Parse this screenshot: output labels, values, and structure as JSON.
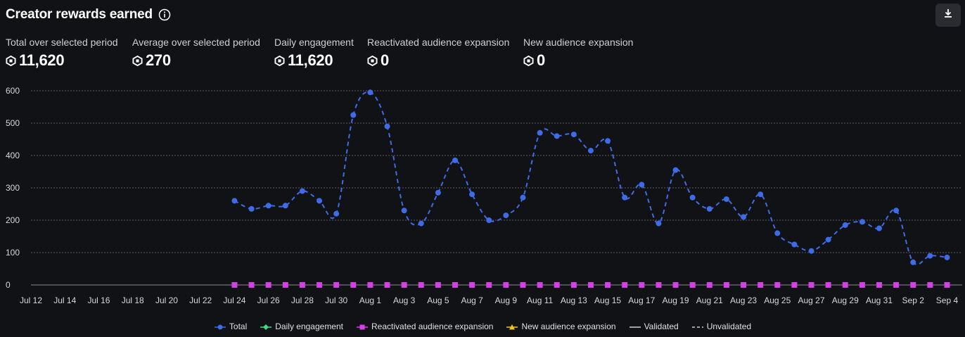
{
  "header": {
    "title": "Creator rewards earned",
    "info_icon": "info-circle-icon",
    "download_icon": "download-icon"
  },
  "stats": [
    {
      "label": "Total over selected period",
      "value": "11,620",
      "icon": "robux-icon"
    },
    {
      "label": "Average over selected period",
      "value": "270",
      "icon": "robux-icon"
    },
    {
      "label": "Daily engagement",
      "value": "11,620",
      "icon": "robux-icon"
    },
    {
      "label": "Reactivated audience expansion",
      "value": "0",
      "icon": "robux-icon"
    },
    {
      "label": "New audience expansion",
      "value": "0",
      "icon": "robux-icon"
    }
  ],
  "legend": [
    {
      "label": "Total",
      "color": "#3e6be8",
      "marker": "circle"
    },
    {
      "label": "Daily engagement",
      "color": "#3ddc84",
      "marker": "diamond"
    },
    {
      "label": "Reactivated audience expansion",
      "color": "#d43fe6",
      "marker": "square"
    },
    {
      "label": "New audience expansion",
      "color": "#f0c419",
      "marker": "triangle"
    },
    {
      "label": "Validated",
      "color": "#d0d0d4",
      "marker": "solid-line"
    },
    {
      "label": "Unvalidated",
      "color": "#d0d0d4",
      "marker": "dashed-line"
    }
  ],
  "chart_data": {
    "type": "line",
    "x_tick_labels": [
      "Jul 12",
      "Jul 14",
      "Jul 16",
      "Jul 18",
      "Jul 20",
      "Jul 22",
      "Jul 24",
      "Jul 26",
      "Jul 28",
      "Jul 30",
      "Aug 1",
      "Aug 3",
      "Aug 5",
      "Aug 7",
      "Aug 9",
      "Aug 11",
      "Aug 13",
      "Aug 15",
      "Aug 17",
      "Aug 19",
      "Aug 21",
      "Aug 23",
      "Aug 25",
      "Aug 27",
      "Aug 29",
      "Aug 31",
      "Sep 2",
      "Sep 4"
    ],
    "y_ticks": [
      0,
      100,
      200,
      300,
      400,
      500,
      600
    ],
    "ylim": [
      0,
      600
    ],
    "grid": true,
    "legend_position": "bottom",
    "series": [
      {
        "name": "Total",
        "color": "#3e6be8",
        "style": "dashed",
        "x": [
          "Jul 24",
          "Jul 25",
          "Jul 26",
          "Jul 27",
          "Jul 28",
          "Jul 29",
          "Jul 30",
          "Jul 31",
          "Aug 1",
          "Aug 2",
          "Aug 3",
          "Aug 4",
          "Aug 5",
          "Aug 6",
          "Aug 7",
          "Aug 8",
          "Aug 9",
          "Aug 10",
          "Aug 11",
          "Aug 12",
          "Aug 13",
          "Aug 14",
          "Aug 15",
          "Aug 16",
          "Aug 17",
          "Aug 18",
          "Aug 19",
          "Aug 20",
          "Aug 21",
          "Aug 22",
          "Aug 23",
          "Aug 24",
          "Aug 25",
          "Aug 26",
          "Aug 27",
          "Aug 28",
          "Aug 29",
          "Aug 30",
          "Aug 31",
          "Sep 1",
          "Sep 2",
          "Sep 3",
          "Sep 4"
        ],
        "values": [
          260,
          235,
          245,
          245,
          290,
          260,
          220,
          525,
          595,
          490,
          230,
          190,
          285,
          385,
          280,
          200,
          215,
          270,
          470,
          460,
          465,
          415,
          445,
          270,
          310,
          190,
          355,
          270,
          235,
          265,
          210,
          280,
          160,
          125,
          105,
          140,
          185,
          195,
          175,
          230,
          70,
          90,
          85
        ]
      },
      {
        "name": "Reactivated audience expansion",
        "color": "#d43fe6",
        "style": "squares",
        "x": [
          "Jul 24",
          "Jul 25",
          "Jul 26",
          "Jul 27",
          "Jul 28",
          "Jul 29",
          "Jul 30",
          "Jul 31",
          "Aug 1",
          "Aug 2",
          "Aug 3",
          "Aug 4",
          "Aug 5",
          "Aug 6",
          "Aug 7",
          "Aug 8",
          "Aug 9",
          "Aug 10",
          "Aug 11",
          "Aug 12",
          "Aug 13",
          "Aug 14",
          "Aug 15",
          "Aug 16",
          "Aug 17",
          "Aug 18",
          "Aug 19",
          "Aug 20",
          "Aug 21",
          "Aug 22",
          "Aug 23",
          "Aug 24",
          "Aug 25",
          "Aug 26",
          "Aug 27",
          "Aug 28",
          "Aug 29",
          "Aug 30",
          "Aug 31",
          "Sep 1",
          "Sep 2",
          "Sep 3",
          "Sep 4"
        ],
        "values": [
          0,
          0,
          0,
          0,
          0,
          0,
          0,
          0,
          0,
          0,
          0,
          0,
          0,
          0,
          0,
          0,
          0,
          0,
          0,
          0,
          0,
          0,
          0,
          0,
          0,
          0,
          0,
          0,
          0,
          0,
          0,
          0,
          0,
          0,
          0,
          0,
          0,
          0,
          0,
          0,
          0,
          0,
          0
        ]
      }
    ]
  }
}
